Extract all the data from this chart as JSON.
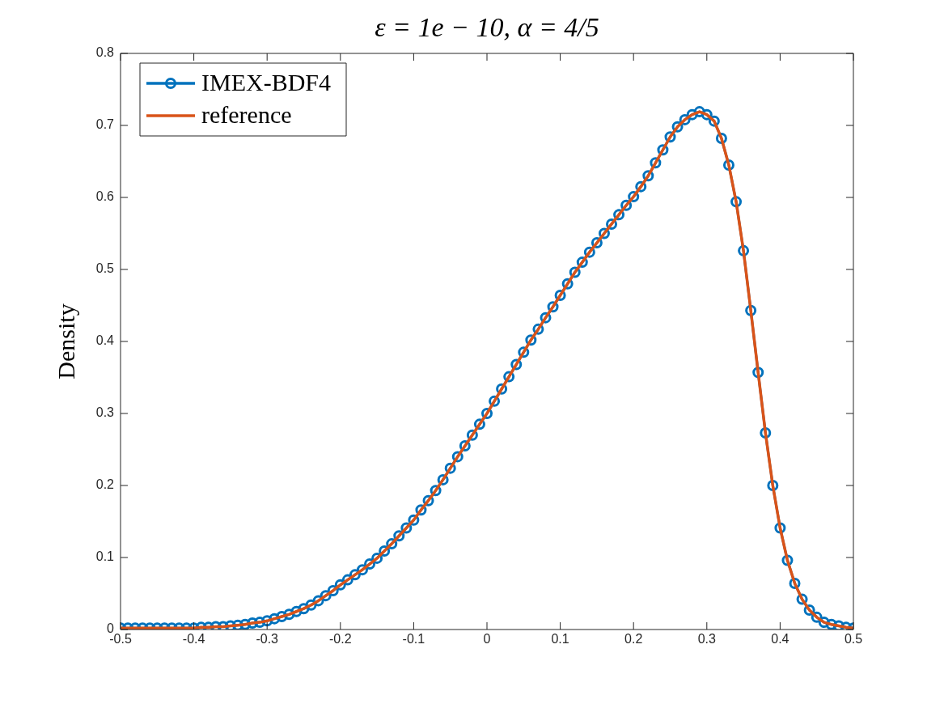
{
  "chart_data": {
    "type": "line",
    "title": "ε = 1e − 10, α = 4/5",
    "ylabel": "Density",
    "x": [
      -0.5,
      -0.49,
      -0.48,
      -0.47,
      -0.46,
      -0.45,
      -0.44,
      -0.43,
      -0.42,
      -0.41,
      -0.4,
      -0.39,
      -0.38,
      -0.37,
      -0.36,
      -0.35,
      -0.34,
      -0.33,
      -0.32,
      -0.31,
      -0.3,
      -0.29,
      -0.28,
      -0.27,
      -0.26,
      -0.25,
      -0.24,
      -0.23,
      -0.22,
      -0.21,
      -0.2,
      -0.19,
      -0.18,
      -0.17,
      -0.16,
      -0.15,
      -0.14,
      -0.13,
      -0.12,
      -0.11,
      -0.1,
      -0.09,
      -0.08,
      -0.07,
      -0.06,
      -0.05,
      -0.04,
      -0.03,
      -0.02,
      -0.01,
      0,
      0.01,
      0.02,
      0.03,
      0.04,
      0.05,
      0.06,
      0.07,
      0.08,
      0.09,
      0.1,
      0.11,
      0.12,
      0.13,
      0.14,
      0.15,
      0.16,
      0.17,
      0.18,
      0.19,
      0.2,
      0.21,
      0.22,
      0.23,
      0.24,
      0.25,
      0.26,
      0.27,
      0.28,
      0.29,
      0.3,
      0.31,
      0.32,
      0.33,
      0.34,
      0.35,
      0.36,
      0.37,
      0.38,
      0.39,
      0.4,
      0.41,
      0.42,
      0.43,
      0.44,
      0.45,
      0.46,
      0.47,
      0.48,
      0.49,
      0.5
    ],
    "series": [
      {
        "name": "IMEX-BDF4",
        "color": "#0072bd",
        "marker": "circle",
        "values": [
          0.002,
          0.002,
          0.002,
          0.002,
          0.002,
          0.002,
          0.002,
          0.002,
          0.002,
          0.002,
          0.002,
          0.003,
          0.003,
          0.004,
          0.004,
          0.005,
          0.006,
          0.007,
          0.009,
          0.01,
          0.012,
          0.015,
          0.018,
          0.021,
          0.025,
          0.029,
          0.034,
          0.04,
          0.047,
          0.054,
          0.062,
          0.069,
          0.076,
          0.083,
          0.091,
          0.099,
          0.109,
          0.119,
          0.13,
          0.141,
          0.152,
          0.166,
          0.179,
          0.193,
          0.208,
          0.224,
          0.24,
          0.255,
          0.27,
          0.285,
          0.3,
          0.317,
          0.334,
          0.351,
          0.368,
          0.385,
          0.402,
          0.417,
          0.433,
          0.448,
          0.464,
          0.48,
          0.496,
          0.51,
          0.524,
          0.537,
          0.55,
          0.563,
          0.576,
          0.589,
          0.601,
          0.615,
          0.63,
          0.648,
          0.666,
          0.684,
          0.698,
          0.708,
          0.715,
          0.719,
          0.715,
          0.706,
          0.682,
          0.645,
          0.594,
          0.526,
          0.443,
          0.357,
          0.273,
          0.2,
          0.141,
          0.096,
          0.064,
          0.042,
          0.027,
          0.017,
          0.01,
          0.007,
          0.005,
          0.003,
          0.002
        ]
      },
      {
        "name": "reference",
        "color": "#d95319",
        "marker": "none",
        "values": [
          0.002,
          0.002,
          0.002,
          0.002,
          0.002,
          0.002,
          0.002,
          0.002,
          0.002,
          0.002,
          0.002,
          0.003,
          0.003,
          0.004,
          0.004,
          0.005,
          0.006,
          0.007,
          0.009,
          0.01,
          0.012,
          0.015,
          0.018,
          0.021,
          0.025,
          0.029,
          0.034,
          0.04,
          0.047,
          0.054,
          0.062,
          0.069,
          0.076,
          0.083,
          0.091,
          0.099,
          0.109,
          0.119,
          0.13,
          0.141,
          0.152,
          0.166,
          0.179,
          0.193,
          0.208,
          0.224,
          0.24,
          0.255,
          0.27,
          0.285,
          0.3,
          0.317,
          0.334,
          0.351,
          0.368,
          0.385,
          0.402,
          0.417,
          0.433,
          0.448,
          0.464,
          0.48,
          0.496,
          0.51,
          0.524,
          0.537,
          0.55,
          0.563,
          0.576,
          0.589,
          0.601,
          0.615,
          0.63,
          0.648,
          0.666,
          0.684,
          0.698,
          0.708,
          0.715,
          0.719,
          0.715,
          0.706,
          0.682,
          0.645,
          0.594,
          0.526,
          0.443,
          0.357,
          0.273,
          0.2,
          0.141,
          0.096,
          0.064,
          0.042,
          0.027,
          0.017,
          0.01,
          0.007,
          0.005,
          0.003,
          0.002
        ]
      }
    ],
    "xlim": [
      -0.5,
      0.5
    ],
    "xticks": [
      -0.5,
      -0.4,
      -0.3,
      -0.2,
      -0.1,
      0,
      0.1,
      0.2,
      0.3,
      0.4,
      0.5
    ],
    "ylim": [
      0,
      0.8
    ],
    "yticks": [
      0,
      0.1,
      0.2,
      0.3,
      0.4,
      0.5,
      0.6,
      0.7,
      0.8
    ],
    "grid": false,
    "legend": "top left",
    "line_style": "solid"
  }
}
